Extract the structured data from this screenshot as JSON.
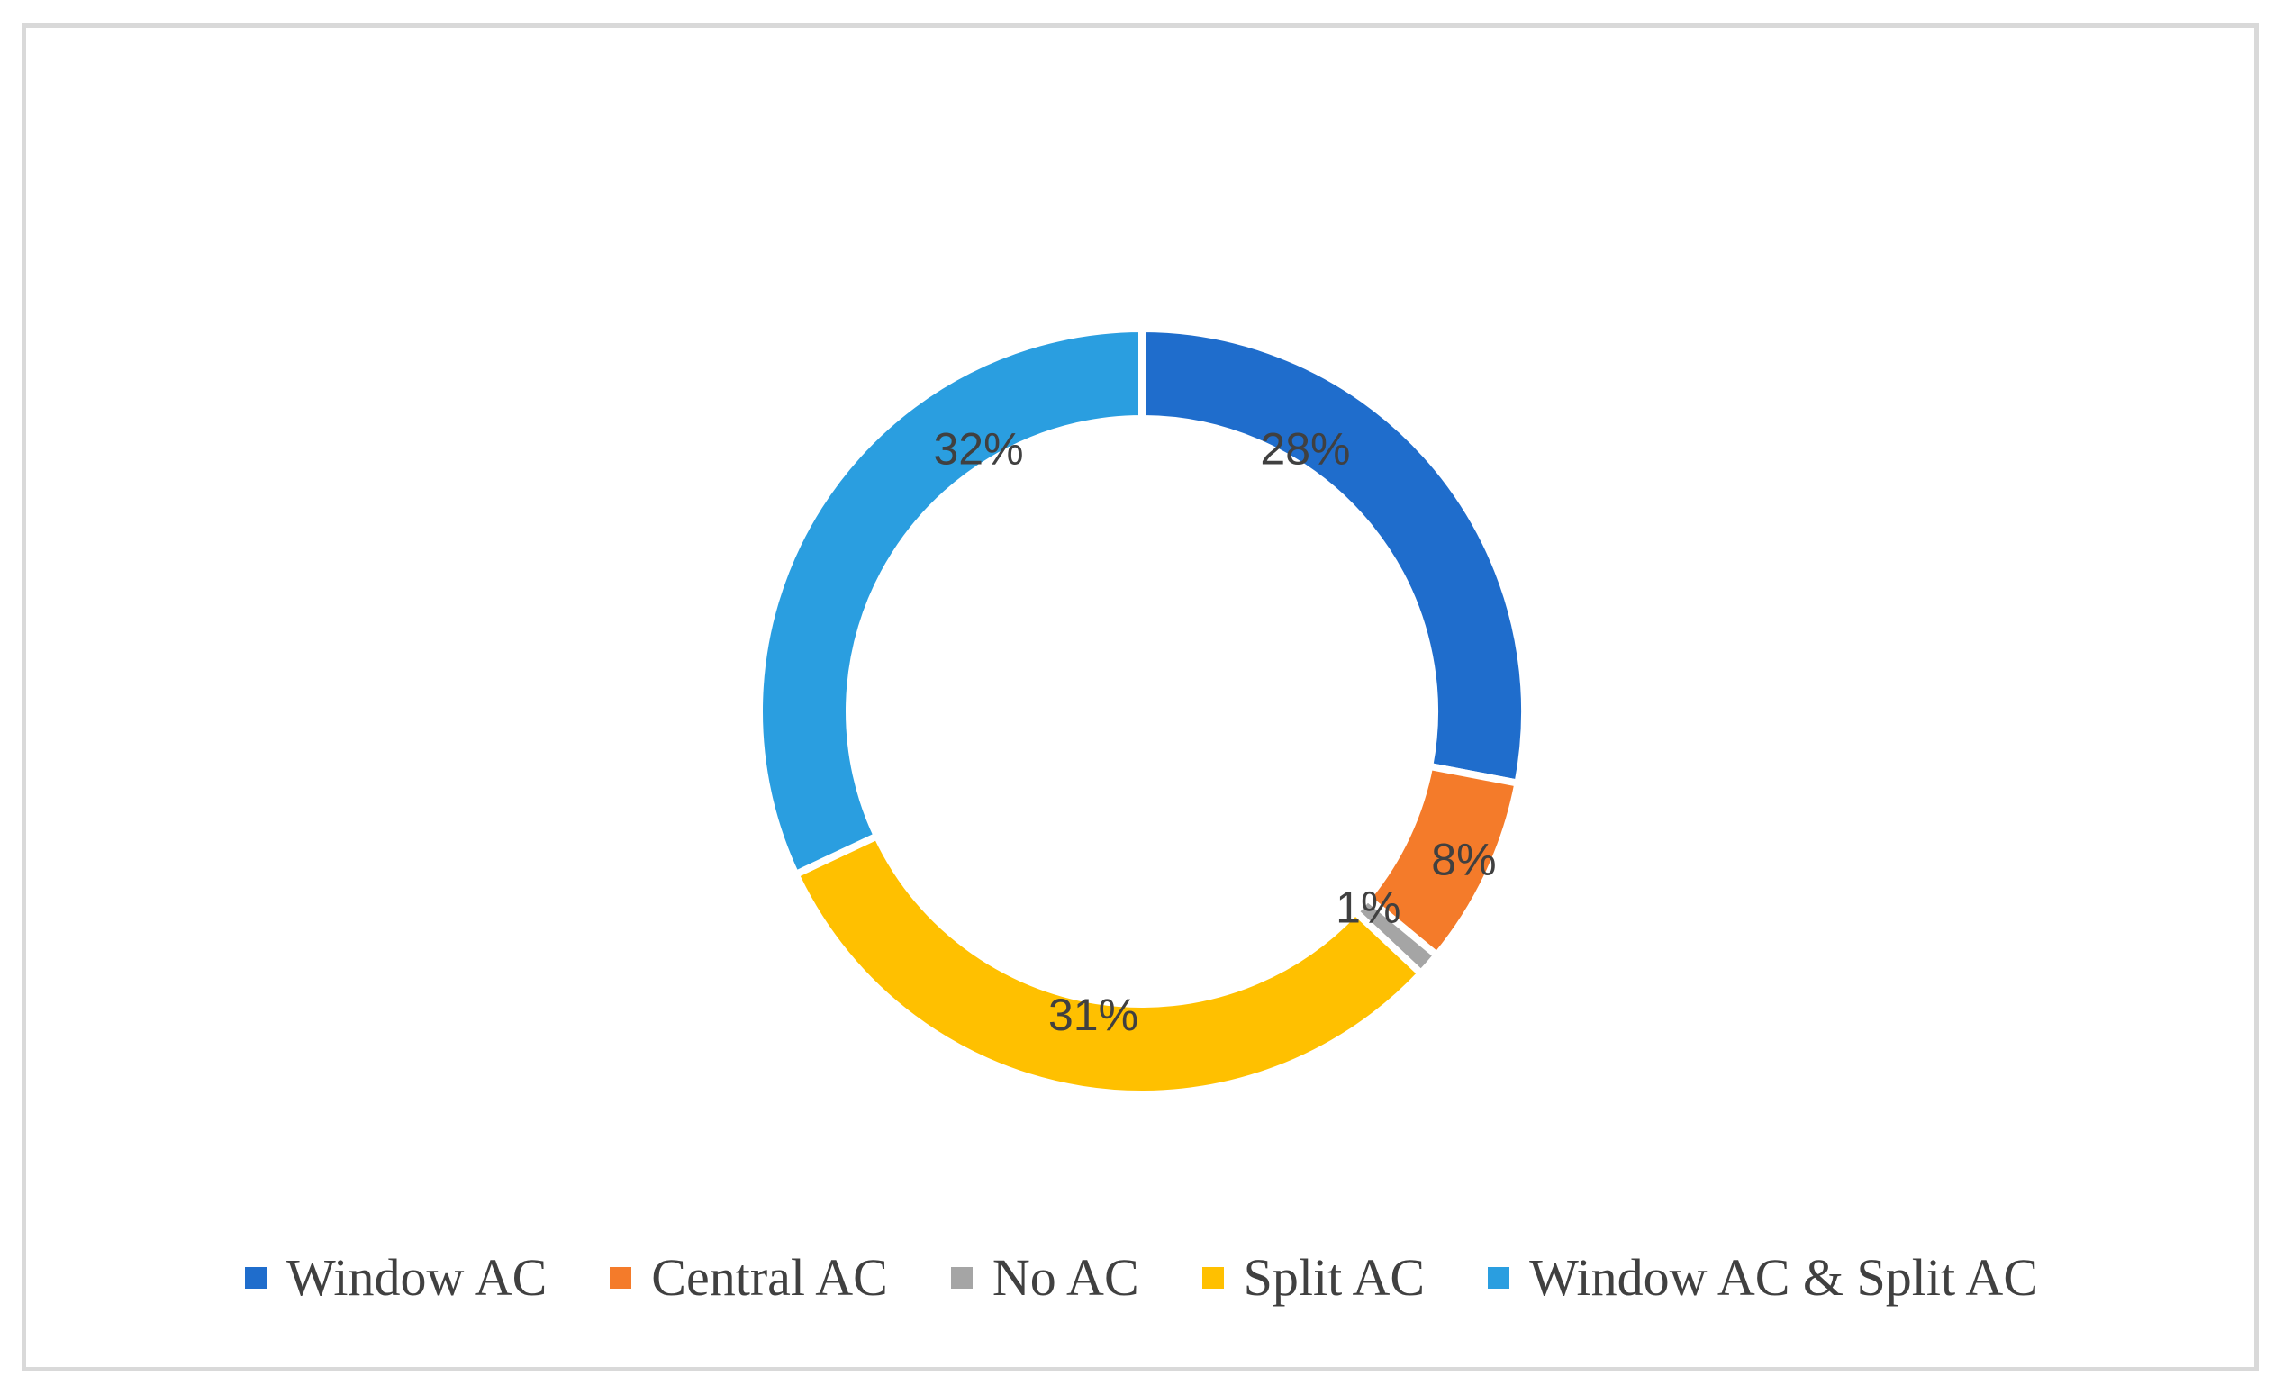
{
  "chart_data": {
    "type": "pie",
    "variant": "donut",
    "title": "",
    "categories": [
      "Window AC",
      "Central AC",
      "No AC",
      "Split AC",
      "Window AC & Split AC"
    ],
    "values": [
      28,
      8,
      1,
      31,
      32
    ],
    "labels": [
      "28%",
      "8%",
      "1%",
      "31%",
      "32%"
    ],
    "colors": [
      "#1f6dcc",
      "#f47b2a",
      "#a5a5a5",
      "#ffc000",
      "#2a9ee0"
    ],
    "legend_position": "bottom",
    "start_angle": "top, clockwise"
  }
}
